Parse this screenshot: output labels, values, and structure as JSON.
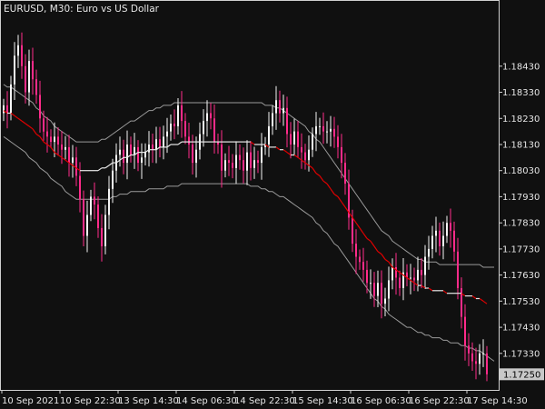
{
  "chart_data": {
    "type": "candlestick",
    "title": "EURUSD, M30:  Euro vs US Dollar",
    "background": "#101010",
    "colors": {
      "frame": "#cfcfcf",
      "text": "#e6e6e6",
      "candle_up": "#f5f5f5",
      "candle_down": "#ff2b8a",
      "band": "#9a9a9a",
      "mid_line_up": "#e8e8e8",
      "mid_line_down": "#e00000",
      "current_price_box": "#c8c8c8"
    },
    "y_axis": {
      "min": 1.1719,
      "max": 1.1868,
      "ticks": [
        "1.18430",
        "1.18330",
        "1.18230",
        "1.18130",
        "1.18030",
        "1.17930",
        "1.17830",
        "1.17730",
        "1.17630",
        "1.17530",
        "1.17430",
        "1.17330"
      ]
    },
    "x_axis": {
      "ticks": [
        "10 Sep 2021",
        "10 Sep 22:30",
        "13 Sep 14:30",
        "14 Sep 06:30",
        "14 Sep 22:30",
        "15 Sep 14:30",
        "16 Sep 06:30",
        "16 Sep 22:30",
        "17 Sep 14:30"
      ]
    },
    "current_price": "1.17250",
    "series": [
      {
        "kind": "close",
        "values": [
          1.1828,
          1.1825,
          1.1836,
          1.1847,
          1.1851,
          1.1843,
          1.1833,
          1.1845,
          1.1838,
          1.1832,
          1.1823,
          1.1818,
          1.1816,
          1.1814,
          1.1816,
          1.1813,
          1.1811,
          1.1812,
          1.1806,
          1.1808,
          1.1801,
          1.1792,
          1.1778,
          1.1786,
          1.1793,
          1.179,
          1.1781,
          1.1774,
          1.1786,
          1.1796,
          1.1803,
          1.1809,
          1.1811,
          1.1806,
          1.1813,
          1.1809,
          1.1812,
          1.1806,
          1.1808,
          1.181,
          1.1813,
          1.1811,
          1.1815,
          1.1812,
          1.1816,
          1.1818,
          1.1821,
          1.182,
          1.1828,
          1.1822,
          1.1816,
          1.1813,
          1.1806,
          1.1811,
          1.1817,
          1.1822,
          1.1825,
          1.1823,
          1.1814,
          1.1813,
          1.1803,
          1.1807,
          1.1806,
          1.1804,
          1.1809,
          1.1807,
          1.1803,
          1.181,
          1.1804,
          1.1807,
          1.1806,
          1.1812,
          1.1813,
          1.182,
          1.1825,
          1.183,
          1.1825,
          1.1827,
          1.1817,
          1.1813,
          1.1818,
          1.1812,
          1.181,
          1.1807,
          1.1811,
          1.1817,
          1.182,
          1.182,
          1.1818,
          1.1818,
          1.1819,
          1.1816,
          1.1812,
          1.1806,
          1.1798,
          1.1785,
          1.1775,
          1.177,
          1.1768,
          1.1765,
          1.176,
          1.176,
          1.1755,
          1.176,
          1.1752,
          1.1754,
          1.1761,
          1.1766,
          1.1762,
          1.1758,
          1.1764,
          1.1762,
          1.1762,
          1.1761,
          1.1765,
          1.1763,
          1.177,
          1.1773,
          1.1778,
          1.178,
          1.1774,
          1.1778,
          1.1783,
          1.178,
          1.1772,
          1.1758,
          1.1747,
          1.1736,
          1.1733,
          1.173,
          1.1729,
          1.1733,
          1.1733,
          1.1725
        ]
      },
      {
        "kind": "band-mid",
        "values": [
          1.1826,
          1.1825,
          1.1825,
          1.1824,
          1.1823,
          1.1822,
          1.1821,
          1.182,
          1.1819,
          1.1817,
          1.1816,
          1.1814,
          1.1813,
          1.1812,
          1.181,
          1.1809,
          1.1808,
          1.1807,
          1.1806,
          1.1805,
          1.1804,
          1.1803,
          1.1803,
          1.1803,
          1.1803,
          1.1803,
          1.1803,
          1.1804,
          1.1804,
          1.1805,
          1.1806,
          1.1806,
          1.1807,
          1.1808,
          1.1808,
          1.1809,
          1.1809,
          1.181,
          1.181,
          1.181,
          1.1811,
          1.1811,
          1.1811,
          1.1812,
          1.1812,
          1.1812,
          1.1813,
          1.1813,
          1.1813,
          1.1814,
          1.1814,
          1.1814,
          1.1814,
          1.1814,
          1.1814,
          1.1814,
          1.1814,
          1.1814,
          1.1814,
          1.1814,
          1.1814,
          1.1814,
          1.1814,
          1.1814,
          1.1814,
          1.1814,
          1.1814,
          1.1814,
          1.1814,
          1.1813,
          1.1813,
          1.1813,
          1.1813,
          1.1812,
          1.1812,
          1.1812,
          1.1811,
          1.1811,
          1.181,
          1.1809,
          1.1809,
          1.1808,
          1.1807,
          1.1806,
          1.1805,
          1.1804,
          1.1802,
          1.1801,
          1.1799,
          1.1798,
          1.1796,
          1.1794,
          1.1793,
          1.1791,
          1.1789,
          1.1787,
          1.1785,
          1.1783,
          1.1781,
          1.1779,
          1.1777,
          1.1776,
          1.1774,
          1.1772,
          1.1771,
          1.1769,
          1.1768,
          1.1766,
          1.1765,
          1.1764,
          1.1763,
          1.1762,
          1.1761,
          1.176,
          1.1759,
          1.1759,
          1.1758,
          1.1758,
          1.1757,
          1.1757,
          1.1757,
          1.1757,
          1.1756,
          1.1756,
          1.1756,
          1.1756,
          1.1756,
          1.1755,
          1.1755,
          1.1755,
          1.1754,
          1.1754,
          1.1753,
          1.1752
        ]
      },
      {
        "kind": "band-upper",
        "values": [
          1.1836,
          1.1835,
          1.1835,
          1.1834,
          1.1833,
          1.1832,
          1.1831,
          1.183,
          1.1829,
          1.1827,
          1.1826,
          1.1824,
          1.1823,
          1.1822,
          1.182,
          1.1819,
          1.1818,
          1.1817,
          1.1816,
          1.1815,
          1.1814,
          1.1814,
          1.1814,
          1.1814,
          1.1814,
          1.1814,
          1.1814,
          1.1815,
          1.1815,
          1.1816,
          1.1817,
          1.1818,
          1.1819,
          1.182,
          1.1821,
          1.1822,
          1.1822,
          1.1823,
          1.1824,
          1.1825,
          1.1826,
          1.1826,
          1.1827,
          1.1827,
          1.1828,
          1.1828,
          1.1828,
          1.1829,
          1.1829,
          1.1829,
          1.1829,
          1.1829,
          1.1829,
          1.1829,
          1.1829,
          1.1829,
          1.1829,
          1.1829,
          1.1829,
          1.1829,
          1.1829,
          1.1829,
          1.1829,
          1.1829,
          1.1829,
          1.1829,
          1.1829,
          1.1829,
          1.1829,
          1.1829,
          1.1829,
          1.1829,
          1.1828,
          1.1828,
          1.1828,
          1.1827,
          1.1827,
          1.1826,
          1.1825,
          1.1824,
          1.1823,
          1.1822,
          1.1821,
          1.182,
          1.1818,
          1.1817,
          1.1815,
          1.1814,
          1.1812,
          1.181,
          1.1808,
          1.1806,
          1.1804,
          1.1802,
          1.18,
          1.1798,
          1.1796,
          1.1794,
          1.1792,
          1.179,
          1.1788,
          1.1786,
          1.1784,
          1.1782,
          1.178,
          1.1779,
          1.1778,
          1.1776,
          1.1775,
          1.1774,
          1.1773,
          1.1772,
          1.1771,
          1.177,
          1.1769,
          1.1769,
          1.1768,
          1.1768,
          1.1768,
          1.1768,
          1.1767,
          1.1767,
          1.1767,
          1.1767,
          1.1767,
          1.1767,
          1.1767,
          1.1767,
          1.1767,
          1.1767,
          1.1767,
          1.1767,
          1.1766,
          1.1766,
          1.1766,
          1.1766
        ]
      },
      {
        "kind": "band-lower",
        "values": [
          1.1816,
          1.1815,
          1.1814,
          1.1813,
          1.1812,
          1.1811,
          1.181,
          1.1808,
          1.1807,
          1.1806,
          1.1804,
          1.1803,
          1.1802,
          1.18,
          1.1799,
          1.1798,
          1.1797,
          1.1795,
          1.1794,
          1.1793,
          1.1792,
          1.1792,
          1.1792,
          1.1792,
          1.1792,
          1.1792,
          1.1792,
          1.1792,
          1.1792,
          1.1792,
          1.1793,
          1.1793,
          1.1794,
          1.1794,
          1.1794,
          1.1795,
          1.1795,
          1.1795,
          1.1795,
          1.1795,
          1.1796,
          1.1796,
          1.1796,
          1.1796,
          1.1796,
          1.1797,
          1.1797,
          1.1797,
          1.1797,
          1.1798,
          1.1798,
          1.1798,
          1.1798,
          1.1798,
          1.1798,
          1.1798,
          1.1798,
          1.1798,
          1.1798,
          1.1798,
          1.1798,
          1.1798,
          1.1798,
          1.1798,
          1.1798,
          1.1798,
          1.1798,
          1.1798,
          1.1797,
          1.1797,
          1.1797,
          1.1796,
          1.1796,
          1.1795,
          1.1795,
          1.1794,
          1.1793,
          1.1793,
          1.1792,
          1.1791,
          1.179,
          1.1789,
          1.1788,
          1.1787,
          1.1786,
          1.1785,
          1.1783,
          1.1782,
          1.178,
          1.1779,
          1.1777,
          1.1775,
          1.1774,
          1.1772,
          1.177,
          1.1768,
          1.1766,
          1.1764,
          1.1762,
          1.176,
          1.1758,
          1.1756,
          1.1754,
          1.1753,
          1.1751,
          1.175,
          1.1748,
          1.1747,
          1.1746,
          1.1745,
          1.1744,
          1.1743,
          1.1743,
          1.1742,
          1.1741,
          1.1741,
          1.174,
          1.174,
          1.1739,
          1.1739,
          1.1739,
          1.1738,
          1.1738,
          1.1737,
          1.1737,
          1.1737,
          1.1736,
          1.1736,
          1.1735,
          1.1735,
          1.1734,
          1.1734,
          1.1733,
          1.1732,
          1.1731,
          1.173
        ]
      }
    ]
  }
}
